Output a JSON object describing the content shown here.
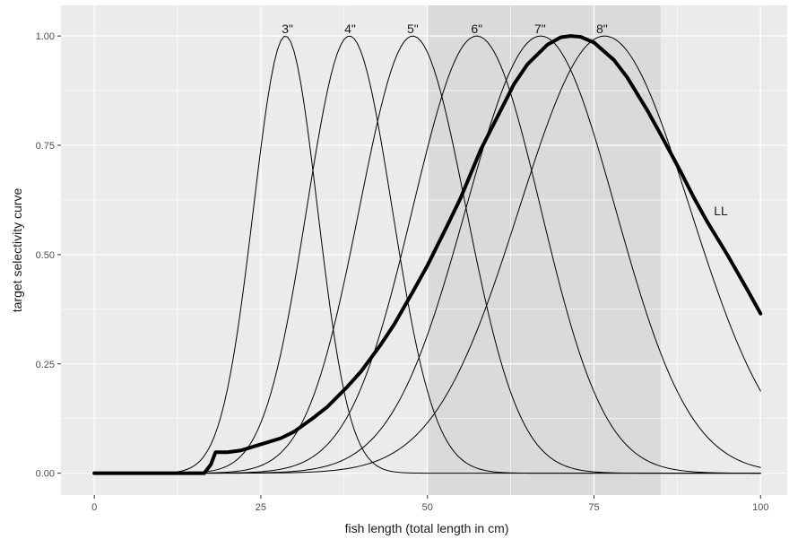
{
  "chart_data": {
    "type": "line",
    "title": "",
    "xlabel": "fish length (total length in cm)",
    "ylabel": "target selectivity curve",
    "xlim": [
      -5,
      104
    ],
    "ylim": [
      -0.05,
      1.07
    ],
    "x_ticks": [
      0,
      25,
      50,
      75,
      100
    ],
    "x_tick_labels": [
      "0",
      "25",
      "50",
      "75",
      "100"
    ],
    "y_ticks": [
      0,
      0.25,
      0.5,
      0.75,
      1
    ],
    "y_tick_labels": [
      "0.00",
      "0.25",
      "0.50",
      "0.75",
      "1.00"
    ],
    "grid": true,
    "legend": "none",
    "shaded_band": {
      "x_from": 50,
      "x_to": 85
    },
    "series": [
      {
        "name": "3\"",
        "label_x": 29,
        "peak_x": 28.7,
        "sigma": 4.8,
        "cutoff_x": 12.5,
        "line_width": 1
      },
      {
        "name": "4\"",
        "label_x": 38.4,
        "peak_x": 38.3,
        "sigma": 6.4,
        "cutoff_x": 12.5,
        "line_width": 1
      },
      {
        "name": "5\"",
        "label_x": 47.8,
        "peak_x": 47.8,
        "sigma": 8.0,
        "cutoff_x": 12.5,
        "line_width": 1
      },
      {
        "name": "6\"",
        "label_x": 57.4,
        "peak_x": 57.4,
        "sigma": 9.6,
        "cutoff_x": 12.5,
        "line_width": 1
      },
      {
        "name": "7\"",
        "label_x": 66.9,
        "peak_x": 67.0,
        "sigma": 11.2,
        "cutoff_x": 12.5,
        "line_width": 1
      },
      {
        "name": "8\"",
        "label_x": 76.2,
        "peak_x": 76.6,
        "sigma": 12.8,
        "cutoff_x": 12.5,
        "line_width": 1
      },
      {
        "name": "LL",
        "label_x": 93,
        "label_y": 0.6,
        "line_width": 4,
        "points": [
          [
            0,
            0
          ],
          [
            10,
            0
          ],
          [
            16.5,
            0
          ],
          [
            17.5,
            0.02
          ],
          [
            18.2,
            0.048
          ],
          [
            20,
            0.048
          ],
          [
            22,
            0.052
          ],
          [
            25,
            0.066
          ],
          [
            28,
            0.08
          ],
          [
            30,
            0.095
          ],
          [
            33,
            0.128
          ],
          [
            35,
            0.152
          ],
          [
            38,
            0.198
          ],
          [
            40,
            0.232
          ],
          [
            43,
            0.294
          ],
          [
            45,
            0.34
          ],
          [
            48,
            0.42
          ],
          [
            50,
            0.475
          ],
          [
            53,
            0.567
          ],
          [
            55,
            0.63
          ],
          [
            58,
            0.74
          ],
          [
            60,
            0.8
          ],
          [
            63,
            0.89
          ],
          [
            65,
            0.935
          ],
          [
            68,
            0.98
          ],
          [
            70,
            0.997
          ],
          [
            71.5,
            1.0
          ],
          [
            73,
            0.998
          ],
          [
            75,
            0.985
          ],
          [
            78,
            0.945
          ],
          [
            80,
            0.905
          ],
          [
            83,
            0.83
          ],
          [
            85,
            0.775
          ],
          [
            88,
            0.69
          ],
          [
            90,
            0.63
          ],
          [
            92,
            0.575
          ],
          [
            95,
            0.5
          ],
          [
            98,
            0.42
          ],
          [
            100,
            0.365
          ]
        ]
      }
    ]
  }
}
